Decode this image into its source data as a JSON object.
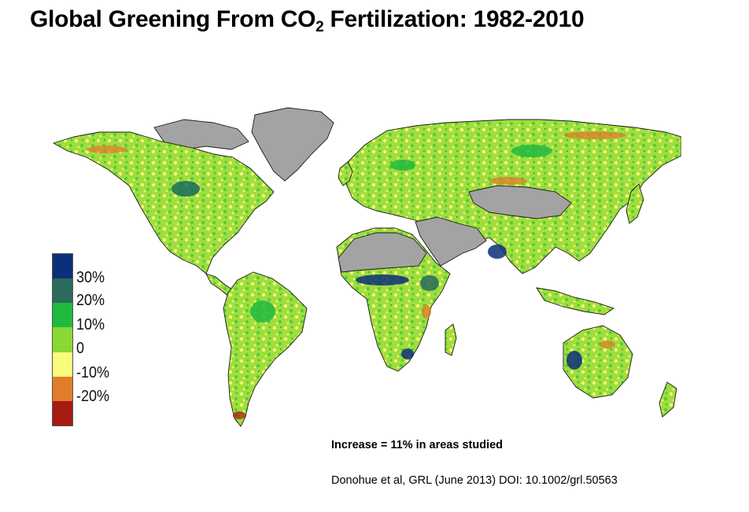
{
  "title": {
    "prefix": "Global Greening From CO",
    "subscript": "2",
    "suffix": " Fertilization: 1982-2010"
  },
  "legend": {
    "colors": [
      "#0d2f7a",
      "#2a6b5c",
      "#1fba3f",
      "#8ad836",
      "#fafb7c",
      "#e07c2a",
      "#a81a12"
    ],
    "labels": [
      "30%",
      "20%",
      "10%",
      "0",
      "-10%",
      "-20%"
    ]
  },
  "map_colors": {
    "land_gray": "#a3a3a3",
    "coast": "#1a1a1a"
  },
  "note": "Increase = 11% in areas studied",
  "citation": "Donohue et al, GRL (June 2013) DOI: 10.1002/grl.50563"
}
